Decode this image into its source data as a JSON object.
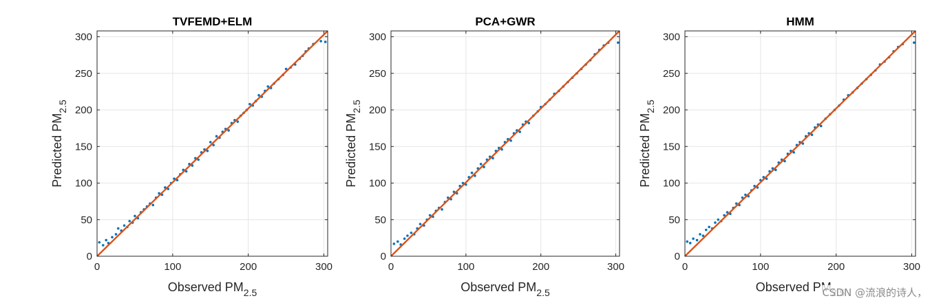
{
  "style": {
    "point_color": "#0072BD",
    "line_color": "#D95319",
    "grid_color": "#e6e6e6",
    "axis_color": "#262626"
  },
  "watermark": "CSDN @流浪的诗人，",
  "chart_data": [
    {
      "type": "scatter",
      "title": "TVFEMD+ELM",
      "xlabel": "Observed PM",
      "xlabel_sub": "2.5",
      "ylabel": "Predicted PM",
      "ylabel_sub": "2.5",
      "xlim": [
        0,
        305
      ],
      "ylim": [
        0,
        308
      ],
      "xticks": [
        0,
        100,
        200,
        300
      ],
      "yticks": [
        0,
        50,
        100,
        150,
        200,
        250,
        300
      ],
      "grid": true,
      "reference_line": [
        [
          0,
          0
        ],
        [
          305,
          308
        ]
      ],
      "points": [
        [
          3,
          19
        ],
        [
          8,
          15
        ],
        [
          12,
          22
        ],
        [
          15,
          18
        ],
        [
          20,
          26
        ],
        [
          25,
          30
        ],
        [
          28,
          38
        ],
        [
          32,
          35
        ],
        [
          36,
          42
        ],
        [
          40,
          40
        ],
        [
          43,
          48
        ],
        [
          47,
          46
        ],
        [
          50,
          55
        ],
        [
          54,
          52
        ],
        [
          58,
          60
        ],
        [
          62,
          64
        ],
        [
          66,
          68
        ],
        [
          70,
          72
        ],
        [
          74,
          70
        ],
        [
          78,
          80
        ],
        [
          82,
          86
        ],
        [
          86,
          84
        ],
        [
          90,
          94
        ],
        [
          94,
          92
        ],
        [
          98,
          100
        ],
        [
          102,
          106
        ],
        [
          106,
          104
        ],
        [
          110,
          112
        ],
        [
          114,
          118
        ],
        [
          118,
          116
        ],
        [
          122,
          126
        ],
        [
          126,
          124
        ],
        [
          130,
          134
        ],
        [
          134,
          132
        ],
        [
          138,
          142
        ],
        [
          142,
          146
        ],
        [
          146,
          144
        ],
        [
          150,
          156
        ],
        [
          154,
          152
        ],
        [
          158,
          164
        ],
        [
          162,
          162
        ],
        [
          166,
          170
        ],
        [
          170,
          174
        ],
        [
          174,
          172
        ],
        [
          178,
          182
        ],
        [
          182,
          186
        ],
        [
          186,
          184
        ],
        [
          190,
          192
        ],
        [
          194,
          196
        ],
        [
          198,
          200
        ],
        [
          202,
          208
        ],
        [
          206,
          206
        ],
        [
          210,
          212
        ],
        [
          214,
          220
        ],
        [
          218,
          218
        ],
        [
          222,
          226
        ],
        [
          226,
          232
        ],
        [
          230,
          230
        ],
        [
          234,
          236
        ],
        [
          240,
          242
        ],
        [
          246,
          248
        ],
        [
          250,
          256
        ],
        [
          256,
          258
        ],
        [
          262,
          262
        ],
        [
          268,
          270
        ],
        [
          272,
          274
        ],
        [
          276,
          280
        ],
        [
          280,
          284
        ],
        [
          286,
          290
        ],
        [
          296,
          294
        ],
        [
          302,
          293
        ]
      ]
    },
    {
      "type": "scatter",
      "title": "PCA+GWR",
      "xlabel": "Observed PM",
      "xlabel_sub": "2.5",
      "ylabel": "Predicted PM",
      "ylabel_sub": "2.5",
      "xlim": [
        0,
        305
      ],
      "ylim": [
        0,
        308
      ],
      "xticks": [
        0,
        100,
        200,
        300
      ],
      "yticks": [
        0,
        50,
        100,
        150,
        200,
        250,
        300
      ],
      "grid": true,
      "reference_line": [
        [
          0,
          0
        ],
        [
          305,
          308
        ]
      ],
      "points": [
        [
          4,
          17
        ],
        [
          9,
          20
        ],
        [
          13,
          16
        ],
        [
          18,
          24
        ],
        [
          22,
          28
        ],
        [
          27,
          32
        ],
        [
          31,
          30
        ],
        [
          35,
          38
        ],
        [
          39,
          44
        ],
        [
          44,
          42
        ],
        [
          48,
          50
        ],
        [
          52,
          56
        ],
        [
          56,
          54
        ],
        [
          60,
          62
        ],
        [
          64,
          66
        ],
        [
          68,
          64
        ],
        [
          72,
          74
        ],
        [
          76,
          80
        ],
        [
          80,
          78
        ],
        [
          84,
          88
        ],
        [
          88,
          86
        ],
        [
          92,
          96
        ],
        [
          96,
          100
        ],
        [
          100,
          98
        ],
        [
          104,
          108
        ],
        [
          108,
          114
        ],
        [
          112,
          110
        ],
        [
          116,
          120
        ],
        [
          120,
          126
        ],
        [
          124,
          122
        ],
        [
          128,
          132
        ],
        [
          132,
          136
        ],
        [
          136,
          134
        ],
        [
          140,
          144
        ],
        [
          144,
          148
        ],
        [
          148,
          146
        ],
        [
          152,
          156
        ],
        [
          156,
          160
        ],
        [
          160,
          158
        ],
        [
          164,
          168
        ],
        [
          168,
          172
        ],
        [
          172,
          170
        ],
        [
          176,
          180
        ],
        [
          180,
          184
        ],
        [
          184,
          182
        ],
        [
          190,
          192
        ],
        [
          196,
          198
        ],
        [
          200,
          204
        ],
        [
          206,
          208
        ],
        [
          212,
          214
        ],
        [
          218,
          222
        ],
        [
          224,
          226
        ],
        [
          230,
          232
        ],
        [
          236,
          238
        ],
        [
          242,
          244
        ],
        [
          248,
          250
        ],
        [
          254,
          256
        ],
        [
          260,
          262
        ],
        [
          266,
          268
        ],
        [
          272,
          276
        ],
        [
          278,
          282
        ],
        [
          284,
          288
        ],
        [
          290,
          292
        ],
        [
          303,
          292
        ]
      ]
    },
    {
      "type": "scatter",
      "title": "HMM",
      "xlabel": "Observed PM",
      "xlabel_sub": "2.5",
      "ylabel": "Predicted PM",
      "ylabel_sub": "2.5",
      "xlim": [
        0,
        305
      ],
      "ylim": [
        0,
        308
      ],
      "xticks": [
        0,
        100,
        200,
        300
      ],
      "yticks": [
        0,
        50,
        100,
        150,
        200,
        250,
        300
      ],
      "grid": true,
      "reference_line": [
        [
          0,
          0
        ],
        [
          305,
          308
        ]
      ],
      "points": [
        [
          3,
          20
        ],
        [
          7,
          18
        ],
        [
          11,
          24
        ],
        [
          16,
          22
        ],
        [
          20,
          30
        ],
        [
          24,
          28
        ],
        [
          28,
          36
        ],
        [
          32,
          40
        ],
        [
          36,
          38
        ],
        [
          40,
          46
        ],
        [
          44,
          50
        ],
        [
          48,
          48
        ],
        [
          52,
          56
        ],
        [
          56,
          60
        ],
        [
          60,
          58
        ],
        [
          64,
          66
        ],
        [
          68,
          72
        ],
        [
          72,
          70
        ],
        [
          76,
          80
        ],
        [
          80,
          84
        ],
        [
          84,
          82
        ],
        [
          88,
          90
        ],
        [
          92,
          96
        ],
        [
          96,
          94
        ],
        [
          100,
          104
        ],
        [
          104,
          108
        ],
        [
          108,
          106
        ],
        [
          112,
          116
        ],
        [
          116,
          120
        ],
        [
          120,
          118
        ],
        [
          124,
          128
        ],
        [
          128,
          132
        ],
        [
          132,
          130
        ],
        [
          136,
          140
        ],
        [
          140,
          144
        ],
        [
          144,
          142
        ],
        [
          148,
          152
        ],
        [
          152,
          156
        ],
        [
          156,
          154
        ],
        [
          160,
          164
        ],
        [
          164,
          168
        ],
        [
          168,
          166
        ],
        [
          172,
          176
        ],
        [
          176,
          180
        ],
        [
          180,
          178
        ],
        [
          186,
          188
        ],
        [
          192,
          194
        ],
        [
          198,
          200
        ],
        [
          204,
          206
        ],
        [
          210,
          214
        ],
        [
          216,
          220
        ],
        [
          222,
          224
        ],
        [
          228,
          230
        ],
        [
          234,
          236
        ],
        [
          240,
          242
        ],
        [
          246,
          248
        ],
        [
          252,
          254
        ],
        [
          258,
          262
        ],
        [
          264,
          266
        ],
        [
          270,
          272
        ],
        [
          276,
          280
        ],
        [
          282,
          286
        ],
        [
          288,
          290
        ],
        [
          303,
          292
        ]
      ]
    }
  ]
}
